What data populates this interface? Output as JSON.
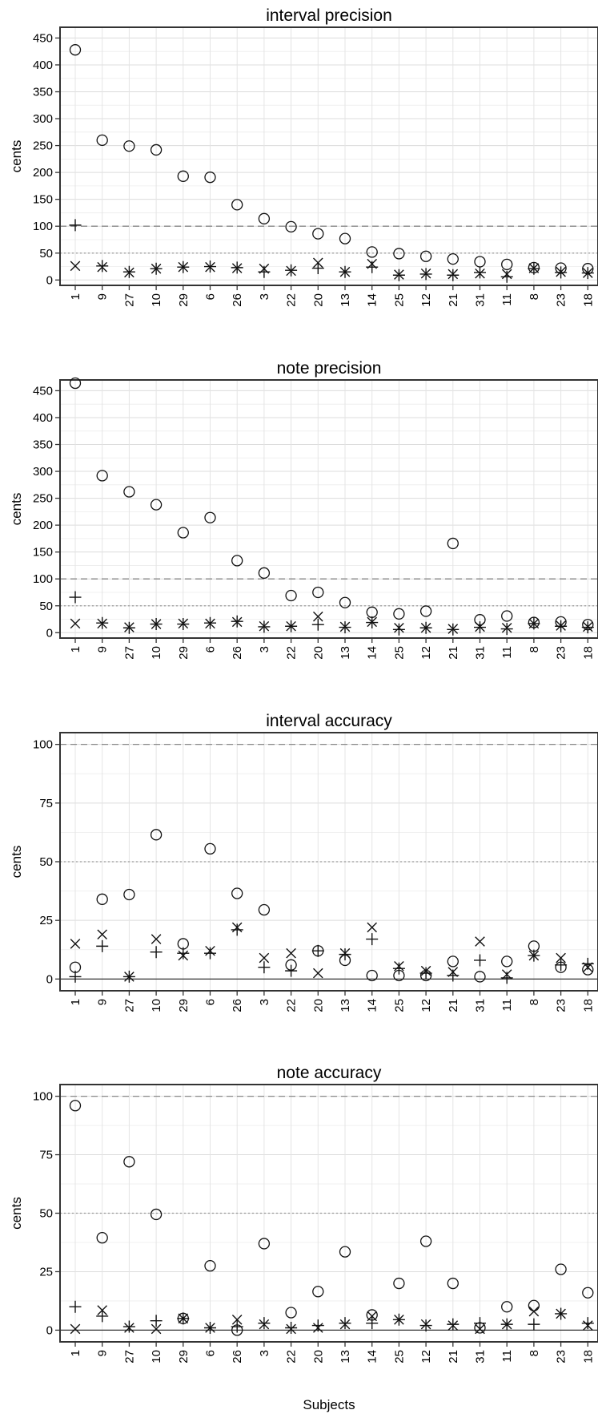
{
  "chart_data": [
    {
      "type": "scatter",
      "title": "interval precision",
      "ylabel": "cents",
      "xlabel": "",
      "categories": [
        "1",
        "9",
        "27",
        "10",
        "29",
        "6",
        "26",
        "3",
        "22",
        "20",
        "13",
        "14",
        "25",
        "12",
        "21",
        "31",
        "11",
        "8",
        "23",
        "18"
      ],
      "ylim": [
        -10,
        470
      ],
      "yticks": [
        0,
        50,
        100,
        150,
        200,
        250,
        300,
        350,
        400,
        450
      ],
      "ref_dashed": 100,
      "ref_dotted": 50,
      "grid": true,
      "series": [
        {
          "marker": "circle",
          "values": [
            428,
            260,
            249,
            242,
            193,
            191,
            140,
            114,
            99,
            86,
            77,
            52,
            49,
            44,
            39,
            34,
            29,
            23,
            22,
            21
          ]
        },
        {
          "marker": "plus",
          "values": [
            102,
            26,
            15,
            21,
            24,
            25,
            23,
            15,
            18,
            22,
            15,
            24,
            9,
            11,
            9,
            14,
            6,
            21,
            14,
            13
          ]
        },
        {
          "marker": "cross",
          "values": [
            26,
            24,
            14,
            21,
            24,
            24,
            22,
            21,
            17,
            32,
            15,
            30,
            10,
            12,
            11,
            12,
            11,
            22,
            15,
            13
          ]
        }
      ]
    },
    {
      "type": "scatter",
      "title": "note precision",
      "ylabel": "cents",
      "xlabel": "",
      "categories": [
        "1",
        "9",
        "27",
        "10",
        "29",
        "6",
        "26",
        "3",
        "22",
        "20",
        "13",
        "14",
        "25",
        "12",
        "21",
        "31",
        "11",
        "8",
        "23",
        "18"
      ],
      "ylim": [
        -10,
        470
      ],
      "yticks": [
        0,
        50,
        100,
        150,
        200,
        250,
        300,
        350,
        400,
        450
      ],
      "ref_dashed": 100,
      "ref_dotted": 50,
      "grid": true,
      "series": [
        {
          "marker": "circle",
          "values": [
            464,
            292,
            262,
            238,
            186,
            214,
            134,
            111,
            69,
            75,
            56,
            38,
            35,
            40,
            166,
            24,
            31,
            19,
            20,
            15
          ]
        },
        {
          "marker": "plus",
          "values": [
            66,
            18,
            9,
            16,
            16,
            18,
            21,
            11,
            12,
            15,
            10,
            19,
            6,
            9,
            6,
            10,
            7,
            17,
            12,
            10
          ]
        },
        {
          "marker": "cross",
          "values": [
            17,
            17,
            10,
            16,
            17,
            17,
            20,
            12,
            12,
            30,
            11,
            20,
            9,
            9,
            7,
            11,
            9,
            17,
            13,
            11
          ]
        }
      ]
    },
    {
      "type": "scatter",
      "title": "interval accuracy",
      "ylabel": "cents",
      "xlabel": "",
      "categories": [
        "1",
        "9",
        "27",
        "10",
        "29",
        "6",
        "26",
        "3",
        "22",
        "20",
        "13",
        "14",
        "25",
        "12",
        "21",
        "31",
        "11",
        "8",
        "23",
        "18"
      ],
      "ylim": [
        -5,
        105
      ],
      "yticks": [
        0,
        25,
        50,
        75,
        100
      ],
      "ref_dashed": 100,
      "ref_dotted": 50,
      "ref_solid": 0,
      "grid": true,
      "series": [
        {
          "marker": "circle",
          "values": [
            5,
            34,
            36,
            61.5,
            15,
            55.5,
            36.5,
            29.5,
            6,
            12,
            8,
            1.5,
            1.5,
            1.5,
            7.5,
            1,
            7.5,
            14,
            5,
            4
          ]
        },
        {
          "marker": "plus",
          "values": [
            1,
            14,
            1,
            11.5,
            11,
            11,
            21,
            5,
            3.5,
            12,
            10.5,
            17,
            4.5,
            2.5,
            1.5,
            8,
            0.5,
            10,
            6,
            6.5
          ]
        },
        {
          "marker": "cross",
          "values": [
            15,
            19,
            1,
            17,
            10,
            12,
            22,
            9,
            11,
            2.5,
            11,
            22,
            5.5,
            3.5,
            3,
            16,
            2,
            10,
            9,
            5
          ]
        }
      ]
    },
    {
      "type": "scatter",
      "title": "note accuracy",
      "ylabel": "cents",
      "xlabel": "Subjects",
      "categories": [
        "1",
        "9",
        "27",
        "10",
        "29",
        "6",
        "26",
        "3",
        "22",
        "20",
        "13",
        "14",
        "25",
        "12",
        "21",
        "31",
        "11",
        "8",
        "23",
        "18"
      ],
      "ylim": [
        -5,
        105
      ],
      "yticks": [
        0,
        25,
        50,
        75,
        100
      ],
      "ref_dashed": 100,
      "ref_dotted": 50,
      "ref_solid": 0,
      "grid": true,
      "series": [
        {
          "marker": "circle",
          "values": [
            96,
            39.5,
            72,
            49.5,
            5,
            27.5,
            0,
            37,
            7.5,
            16.5,
            33.5,
            6.5,
            20,
            38,
            20,
            1,
            10,
            10.5,
            26,
            16
          ]
        },
        {
          "marker": "plus",
          "values": [
            10,
            6,
            1.5,
            4,
            5,
            1,
            1.5,
            3,
            1,
            2,
            3,
            3,
            4.5,
            2,
            2.5,
            3,
            2.5,
            2.5,
            7,
            3
          ]
        },
        {
          "marker": "cross",
          "values": [
            0.5,
            8.5,
            1,
            0.5,
            5,
            1,
            4.5,
            2.5,
            0.5,
            1,
            2.5,
            6,
            4.5,
            2.5,
            2,
            0.5,
            2.5,
            8,
            7,
            2
          ]
        }
      ]
    }
  ]
}
